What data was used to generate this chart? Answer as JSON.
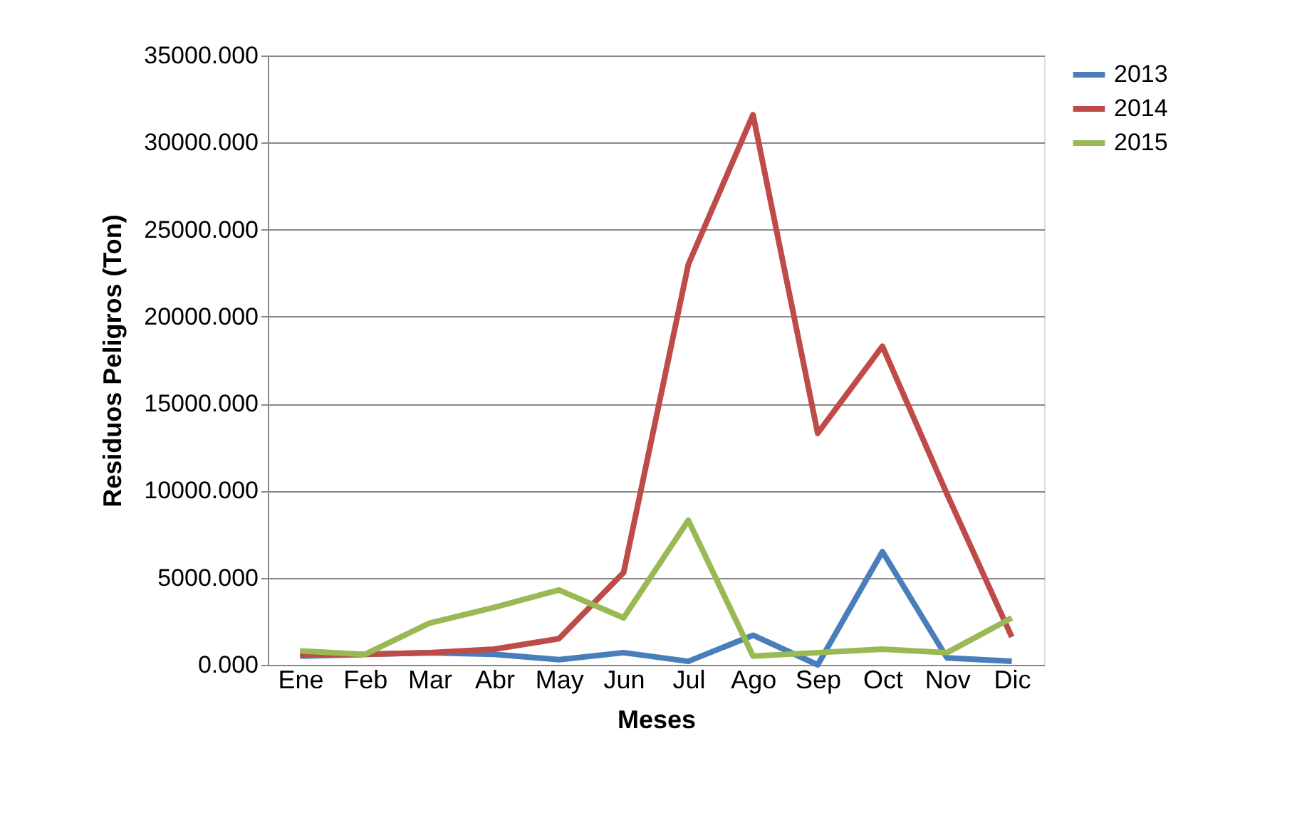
{
  "chart_data": {
    "type": "line",
    "xlabel": "Meses",
    "ylabel": "Residuos Peligros (Ton)",
    "categories": [
      "Ene",
      "Feb",
      "Mar",
      "Abr",
      "May",
      "Jun",
      "Jul",
      "Ago",
      "Sep",
      "Oct",
      "Nov",
      "Dic"
    ],
    "series": [
      {
        "name": "2013",
        "color": "#4a7ebb",
        "values": [
          500,
          600,
          700,
          600,
          300,
          700,
          200,
          1700,
          0,
          6500,
          400,
          200
        ]
      },
      {
        "name": "2014",
        "color": "#be4b48",
        "values": [
          600,
          600,
          700,
          900,
          1500,
          5300,
          23000,
          31600,
          13300,
          18300,
          9800,
          1600
        ]
      },
      {
        "name": "2015",
        "color": "#98b954",
        "values": [
          800,
          600,
          2400,
          3300,
          4300,
          2700,
          8300,
          500,
          700,
          900,
          700,
          2700
        ]
      }
    ],
    "ylim": [
      0,
      35000
    ],
    "yticks": [
      {
        "value": 0,
        "label": "0.000"
      },
      {
        "value": 5000,
        "label": "5000.000"
      },
      {
        "value": 10000,
        "label": "10000.000"
      },
      {
        "value": 15000,
        "label": "15000.000"
      },
      {
        "value": 20000,
        "label": "20000.000"
      },
      {
        "value": 25000,
        "label": "25000.000"
      },
      {
        "value": 30000,
        "label": "30000.000"
      },
      {
        "value": 35000,
        "label": "35000.000"
      }
    ],
    "grid": "y",
    "legend": "right",
    "marker": "none",
    "line_style": "solid"
  }
}
